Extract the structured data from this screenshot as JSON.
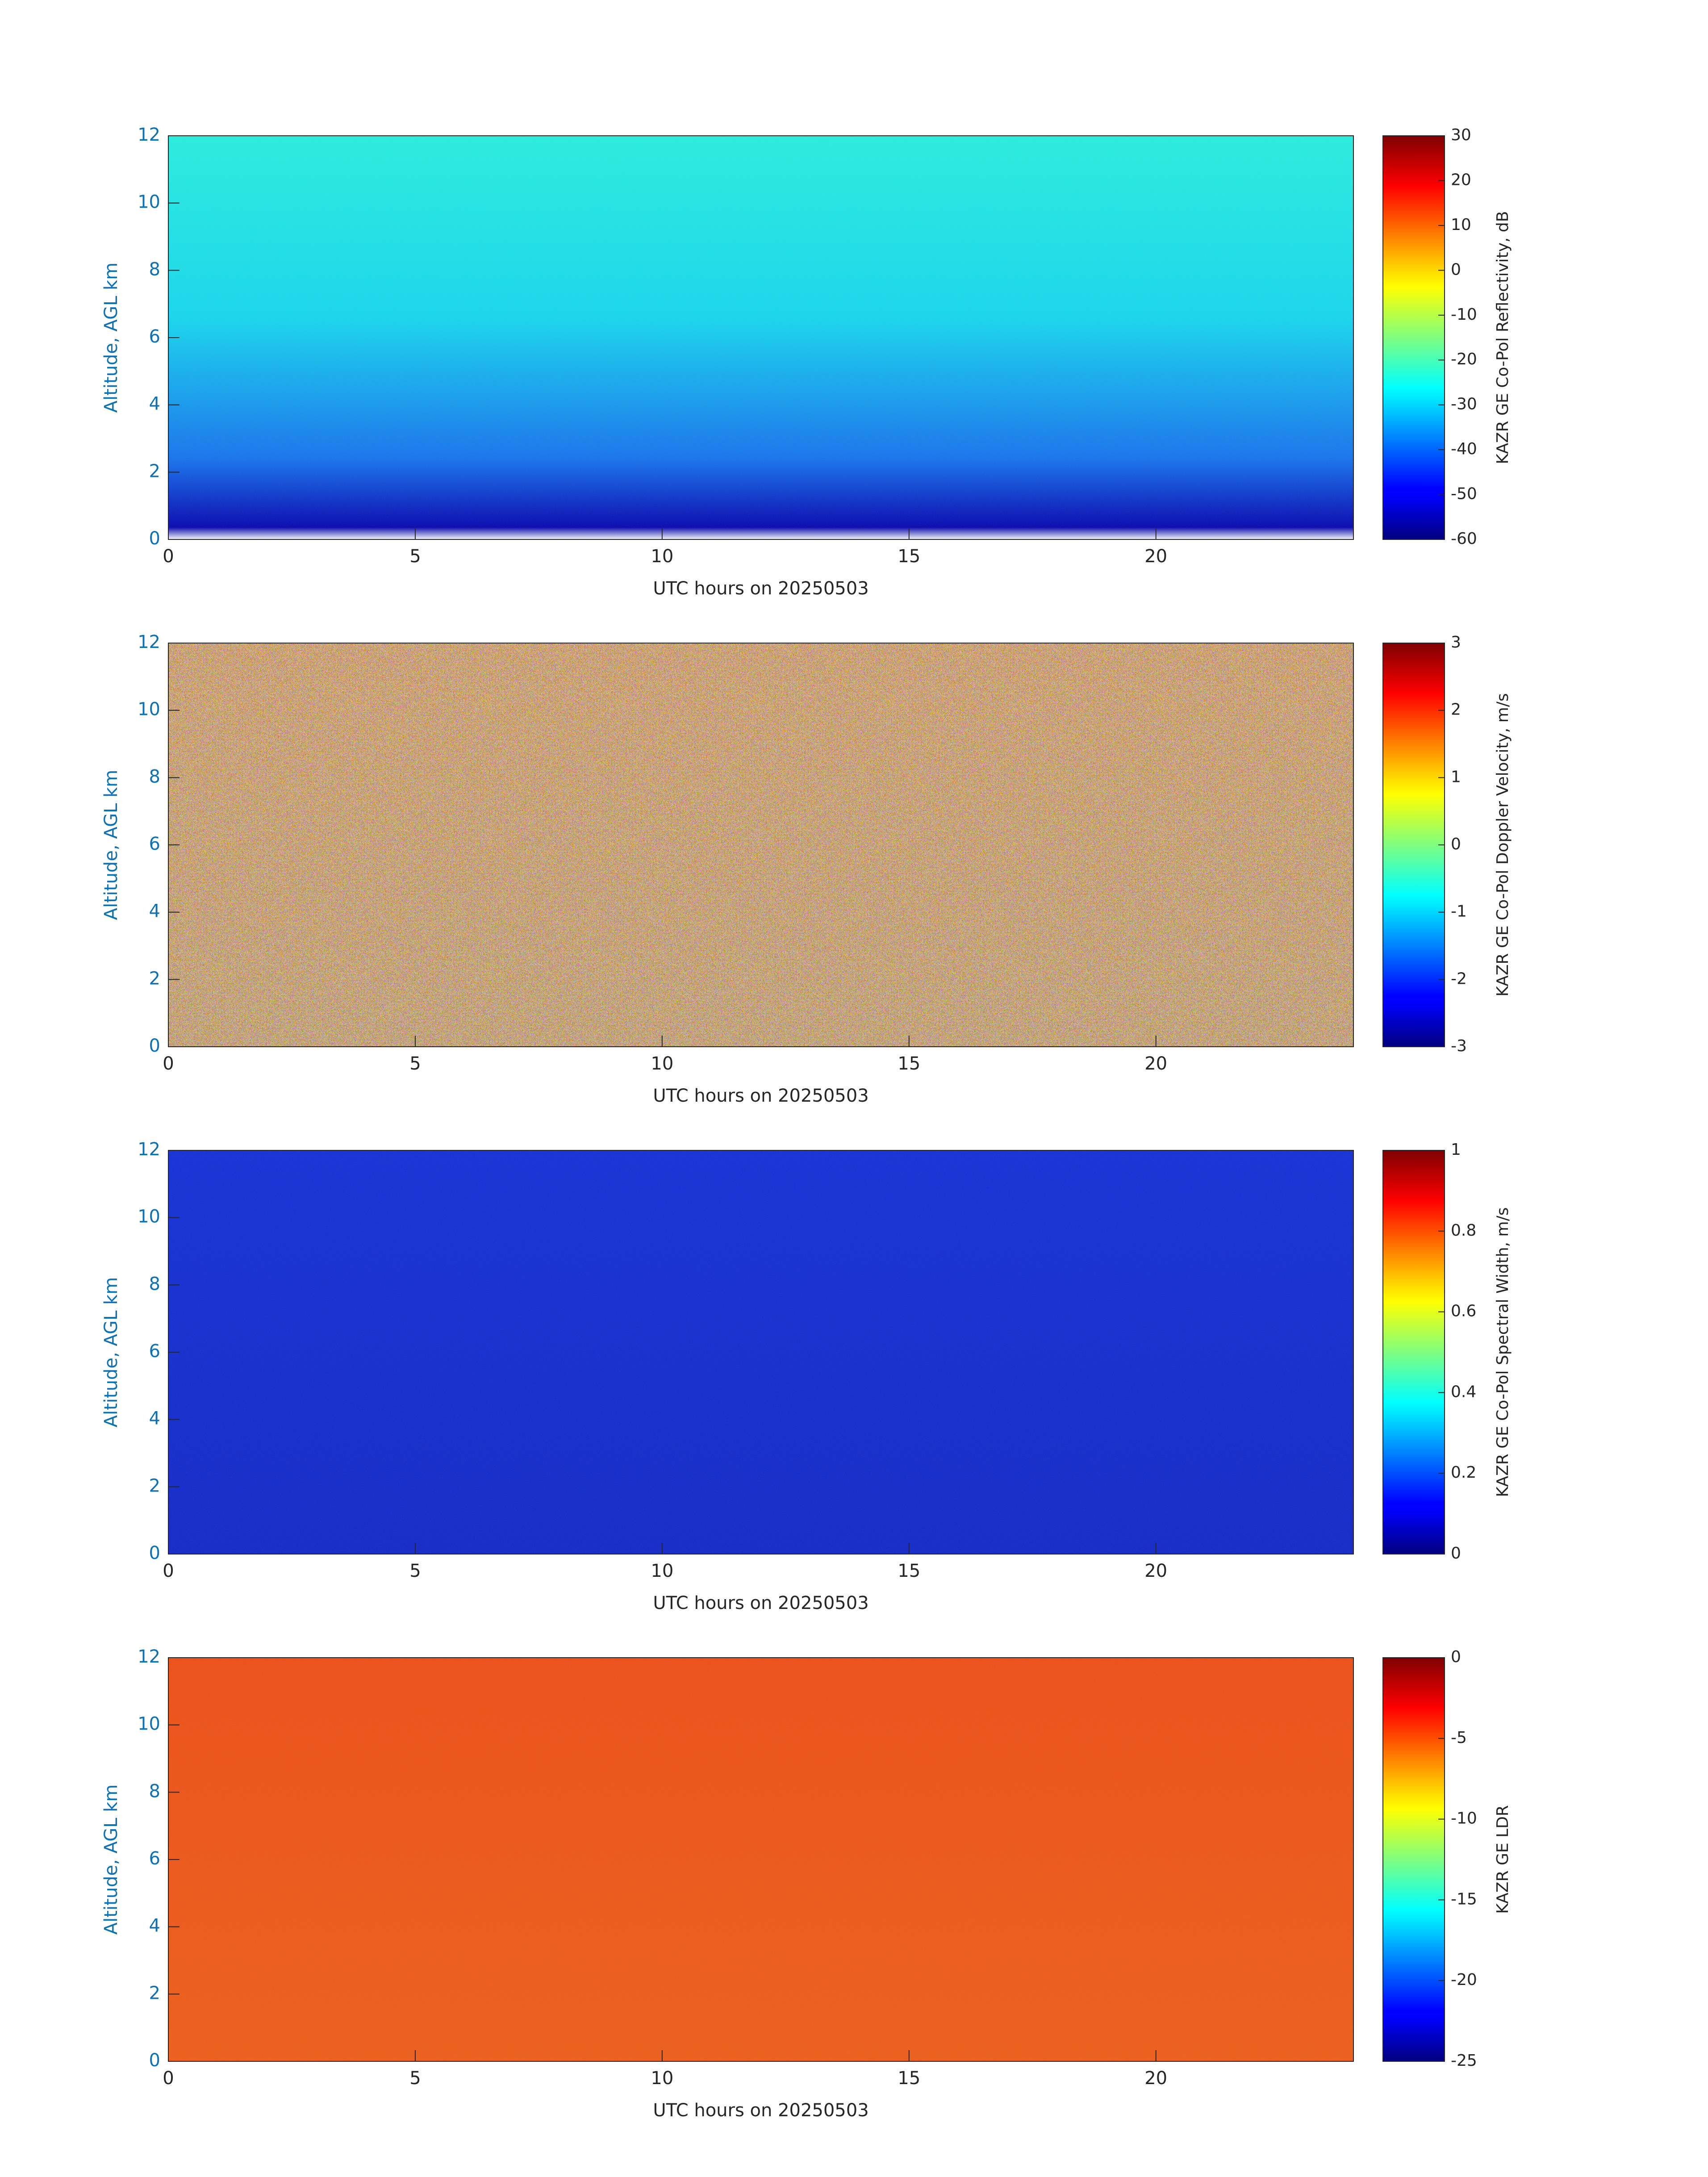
{
  "chart_data": [
    {
      "type": "heatmap",
      "xlabel": "UTC hours on 20250503",
      "ylabel": "Altitude, AGL km",
      "colorbar_label": "KAZR GE Co-Pol Reflectivity, dB",
      "xlim": [
        0,
        24
      ],
      "xticks": [
        0,
        5,
        10,
        15,
        20
      ],
      "ylim": [
        0,
        12
      ],
      "yticks": [
        0,
        2,
        4,
        6,
        8,
        10,
        12
      ],
      "clim": [
        -60,
        30
      ],
      "cticks": [
        -60,
        -50,
        -40,
        -30,
        -20,
        -10,
        0,
        10,
        20,
        30
      ],
      "colormap": "jet"
    },
    {
      "type": "heatmap",
      "xlabel": "UTC hours on 20250503",
      "ylabel": "Altitude, AGL km",
      "colorbar_label": "KAZR GE Co-Pol Doppler Velocity, m/s",
      "xlim": [
        0,
        24
      ],
      "xticks": [
        0,
        5,
        10,
        15,
        20
      ],
      "ylim": [
        0,
        12
      ],
      "yticks": [
        0,
        2,
        4,
        6,
        8,
        10,
        12
      ],
      "clim": [
        -3,
        3
      ],
      "cticks": [
        -3,
        -2,
        -1,
        0,
        1,
        2,
        3
      ],
      "colormap": "jet"
    },
    {
      "type": "heatmap",
      "xlabel": "UTC hours on 20250503",
      "ylabel": "Altitude, AGL km",
      "colorbar_label": "KAZR GE Co-Pol Spectral Width, m/s",
      "xlim": [
        0,
        24
      ],
      "xticks": [
        0,
        5,
        10,
        15,
        20
      ],
      "ylim": [
        0,
        12
      ],
      "yticks": [
        0,
        2,
        4,
        6,
        8,
        10,
        12
      ],
      "clim": [
        0,
        1
      ],
      "cticks": [
        0,
        0.2,
        0.4,
        0.6,
        0.8,
        1
      ],
      "colormap": "jet"
    },
    {
      "type": "heatmap",
      "xlabel": "UTC hours on 20250503",
      "ylabel": "Altitude, AGL km",
      "colorbar_label": "KAZR GE LDR",
      "xlim": [
        0,
        24
      ],
      "xticks": [
        0,
        5,
        10,
        15,
        20
      ],
      "ylim": [
        0,
        12
      ],
      "yticks": [
        0,
        2,
        4,
        6,
        8,
        10,
        12
      ],
      "clim": [
        -25,
        0
      ],
      "cticks": [
        -25,
        -20,
        -15,
        -10,
        -5,
        0
      ],
      "colormap": "jet"
    }
  ]
}
